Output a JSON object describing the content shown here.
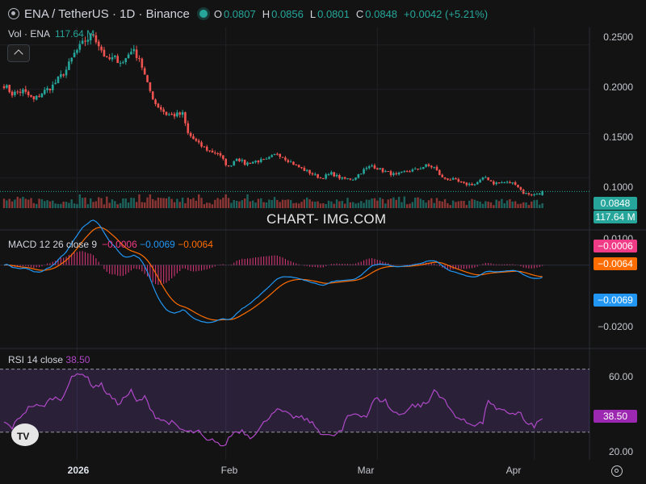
{
  "header": {
    "symbol": "ENA / TetherUS · 1D · Binance",
    "o_label": "O",
    "o_value": "0.0807",
    "h_label": "H",
    "h_value": "0.0856",
    "l_label": "L",
    "l_value": "0.0801",
    "c_label": "C",
    "c_value": "0.0848",
    "change": "+0.0042 (+5.21%)"
  },
  "volume_legend": {
    "label": "Vol · ENA",
    "value": "117.64 M"
  },
  "macd_legend": {
    "label": "MACD 12 26 close 9",
    "hist": "−0.0006",
    "macd": "−0.0069",
    "signal": "−0.0064"
  },
  "rsi_legend": {
    "label": "RSI 14 close",
    "value": "38.50"
  },
  "watermark": "CHART- IMG.COM",
  "price_axis": [
    "0.2500",
    "0.2000",
    "0.1500",
    "0.1000"
  ],
  "macd_axis": [
    "0.0100",
    "−0.0200"
  ],
  "rsi_axis": [
    "60.00",
    "20.00"
  ],
  "badges": {
    "price": "0.0848",
    "volume": "117.64 M",
    "macd_hist": "−0.0006",
    "macd_signal": "−0.0064",
    "macd_line": "−0.0069",
    "rsi": "38.50"
  },
  "x_axis": {
    "y2026": "2026",
    "feb": "Feb",
    "mar": "Mar",
    "apr": "Apr"
  },
  "colors": {
    "up": "#26a69a",
    "down": "#ef5350",
    "macd": "#2196f3",
    "signal": "#ff6d00",
    "hist": "#f23b87",
    "rsi": "#b048c8",
    "bg": "#131313"
  },
  "chart_data": {
    "type": "candlestick",
    "timeframe": "1D",
    "price_range": [
      0.066,
      0.268
    ],
    "price_anchors": [
      [
        0,
        0.205
      ],
      [
        3,
        0.195
      ],
      [
        7,
        0.198
      ],
      [
        11,
        0.188
      ],
      [
        14,
        0.196
      ],
      [
        18,
        0.204
      ],
      [
        23,
        0.222
      ],
      [
        26,
        0.24
      ],
      [
        30,
        0.255
      ],
      [
        33,
        0.262
      ],
      [
        38,
        0.233
      ],
      [
        41,
        0.235
      ],
      [
        44,
        0.23
      ],
      [
        47,
        0.245
      ],
      [
        50,
        0.236
      ],
      [
        53,
        0.205
      ],
      [
        56,
        0.184
      ],
      [
        60,
        0.172
      ],
      [
        63,
        0.171
      ],
      [
        66,
        0.172
      ],
      [
        68,
        0.15
      ],
      [
        72,
        0.138
      ],
      [
        76,
        0.13
      ],
      [
        79,
        0.128
      ],
      [
        83,
        0.112
      ],
      [
        86,
        0.123
      ],
      [
        89,
        0.116
      ],
      [
        93,
        0.119
      ],
      [
        97,
        0.12
      ],
      [
        101,
        0.128
      ],
      [
        105,
        0.12
      ],
      [
        109,
        0.112
      ],
      [
        113,
        0.106
      ],
      [
        117,
        0.1
      ],
      [
        121,
        0.105
      ],
      [
        125,
        0.099
      ],
      [
        129,
        0.099
      ],
      [
        133,
        0.109
      ],
      [
        136,
        0.114
      ],
      [
        140,
        0.108
      ],
      [
        145,
        0.103
      ],
      [
        149,
        0.108
      ],
      [
        152,
        0.109
      ],
      [
        156,
        0.114
      ],
      [
        159,
        0.112
      ],
      [
        162,
        0.1
      ],
      [
        166,
        0.098
      ],
      [
        170,
        0.093
      ],
      [
        174,
        0.093
      ],
      [
        178,
        0.101
      ],
      [
        181,
        0.094
      ],
      [
        185,
        0.095
      ],
      [
        189,
        0.094
      ],
      [
        192,
        0.083
      ],
      [
        196,
        0.081
      ],
      [
        199,
        0.0848
      ]
    ],
    "volume_unit": "M",
    "macd_range": [
      -0.028,
      0.012
    ],
    "rsi_range": [
      15,
      78
    ],
    "rsi_bands": [
      70,
      30
    ],
    "rsi_anchors": [
      [
        0,
        36
      ],
      [
        3,
        33
      ],
      [
        6,
        40
      ],
      [
        10,
        47
      ],
      [
        14,
        46
      ],
      [
        18,
        52
      ],
      [
        21,
        51
      ],
      [
        25,
        64
      ],
      [
        28,
        68
      ],
      [
        30,
        66
      ],
      [
        33,
        59
      ],
      [
        36,
        60
      ],
      [
        38,
        55
      ],
      [
        42,
        48
      ],
      [
        44,
        51
      ],
      [
        47,
        56
      ],
      [
        49,
        49
      ],
      [
        52,
        52
      ],
      [
        56,
        40
      ],
      [
        59,
        37
      ],
      [
        62,
        36
      ],
      [
        65,
        32
      ],
      [
        68,
        30
      ],
      [
        72,
        30
      ],
      [
        75,
        24
      ],
      [
        78,
        25
      ],
      [
        81,
        20
      ],
      [
        83,
        26
      ],
      [
        85,
        30
      ],
      [
        88,
        31
      ],
      [
        91,
        27
      ],
      [
        94,
        31
      ],
      [
        97,
        38
      ],
      [
        100,
        44
      ],
      [
        103,
        43
      ],
      [
        106,
        40
      ],
      [
        110,
        39
      ],
      [
        113,
        37
      ],
      [
        117,
        30
      ],
      [
        121,
        27
      ],
      [
        125,
        31
      ],
      [
        127,
        40
      ],
      [
        130,
        42
      ],
      [
        134,
        40
      ],
      [
        137,
        51
      ],
      [
        141,
        50
      ],
      [
        143,
        44
      ],
      [
        146,
        41
      ],
      [
        149,
        44
      ],
      [
        151,
        47
      ],
      [
        154,
        47
      ],
      [
        157,
        49
      ],
      [
        159,
        57
      ],
      [
        162,
        52
      ],
      [
        165,
        44
      ],
      [
        168,
        39
      ],
      [
        171,
        36
      ],
      [
        174,
        35
      ],
      [
        177,
        36
      ],
      [
        179,
        51
      ],
      [
        182,
        44
      ],
      [
        185,
        43
      ],
      [
        188,
        42
      ],
      [
        191,
        42
      ],
      [
        193,
        35
      ],
      [
        196,
        34
      ],
      [
        199,
        38.5
      ]
    ],
    "x_labels": [
      {
        "label": "2026",
        "index": 27
      },
      {
        "label": "Feb",
        "index": 82
      },
      {
        "label": "Mar",
        "index": 138
      },
      {
        "label": "Apr",
        "index": 196
      }
    ]
  }
}
